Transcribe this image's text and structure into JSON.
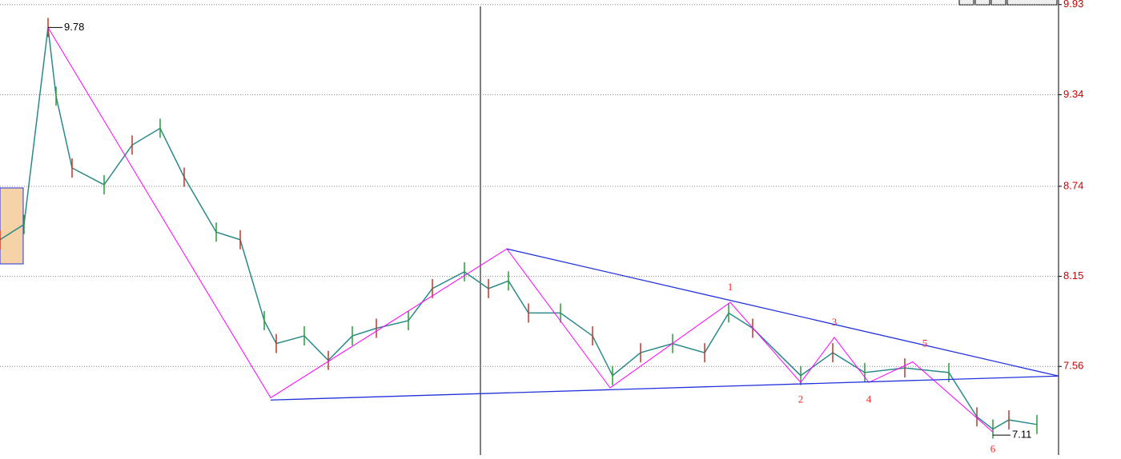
{
  "chart_data": {
    "type": "line",
    "xlim": [
      0,
      1322
    ],
    "ylim": [
      6.98,
      9.96
    ],
    "yticks": [
      9.93,
      9.34,
      8.74,
      8.15,
      7.56
    ],
    "grid": true,
    "high": 9.78,
    "low": 7.11,
    "x": [
      0,
      30,
      60,
      70,
      90,
      130,
      165,
      200,
      230,
      270,
      300,
      330,
      345,
      380,
      410,
      440,
      470,
      510,
      540,
      580,
      610,
      635,
      660,
      700,
      740,
      765,
      800,
      840,
      880,
      910,
      940,
      1000,
      1040,
      1080,
      1130,
      1185,
      1220,
      1240,
      1260,
      1295
    ],
    "values": [
      8.39,
      8.49,
      9.78,
      9.33,
      8.86,
      8.75,
      9.01,
      9.12,
      8.8,
      8.44,
      8.39,
      7.86,
      7.71,
      7.76,
      7.6,
      7.76,
      7.81,
      7.86,
      8.07,
      8.18,
      8.07,
      8.12,
      7.91,
      7.91,
      7.76,
      7.5,
      7.65,
      7.71,
      7.65,
      7.91,
      7.81,
      7.5,
      7.65,
      7.52,
      7.55,
      7.52,
      7.23,
      7.15,
      7.21,
      7.18
    ],
    "color": "#2a8a8a",
    "zigzag": {
      "color": "#ff00ff",
      "x": [
        60,
        338,
        633,
        762,
        912,
        1000,
        1042,
        1085,
        1140,
        1240
      ],
      "values": [
        9.78,
        7.355,
        8.33,
        7.42,
        7.98,
        7.455,
        7.75,
        7.455,
        7.59,
        7.13
      ]
    },
    "trendlines": [
      {
        "color": "#2233dd",
        "x": [
          633,
          1322
        ],
        "values": [
          8.33,
          7.497
        ]
      },
      {
        "color": "#2233dd",
        "x": [
          338,
          1322
        ],
        "values": [
          7.34,
          7.497
        ]
      }
    ],
    "wave_labels": [
      "1",
      "2",
      "3",
      "4",
      "5",
      "6"
    ]
  }
}
